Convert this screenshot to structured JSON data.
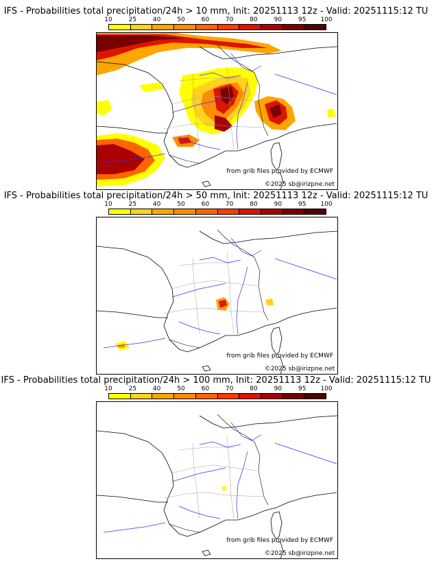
{
  "colorbar": {
    "ticks": [
      "10",
      "25",
      "40",
      "50",
      "60",
      "70",
      "80",
      "90",
      "95",
      "100"
    ],
    "colors": [
      "#ffff00",
      "#ffd21e",
      "#ffa500",
      "#ff8c00",
      "#ff6400",
      "#ff3c00",
      "#dc1400",
      "#aa0000",
      "#780000",
      "#500000"
    ]
  },
  "land_color": "#ffffff",
  "coast_color": "#000000",
  "river_color": "#3030ff",
  "border_color": "#a0a0a0",
  "panels": [
    {
      "title": "IFS - Probabilities total precipitation/24h > 10 mm, Init: 20251113 12z - Valid: 20251115:12 TU",
      "source": "from grib files provided by ECMWF",
      "copyright": "©2025 sb@irizpne.net"
    },
    {
      "title": "IFS - Probabilities total precipitation/24h > 50 mm, Init: 20251113 12z - Valid: 20251115:12 TU",
      "source": "from grib files provided by ECMWF",
      "copyright": "©2025 sb@irizpne.net"
    },
    {
      "title": "IFS - Probabilities total precipitation/24h > 100 mm, Init: 20251113 12z - Valid: 20251115:12 TU",
      "source": "from grib files provided by ECMWF",
      "copyright": "©2025 sb@irizpne.net"
    }
  ]
}
